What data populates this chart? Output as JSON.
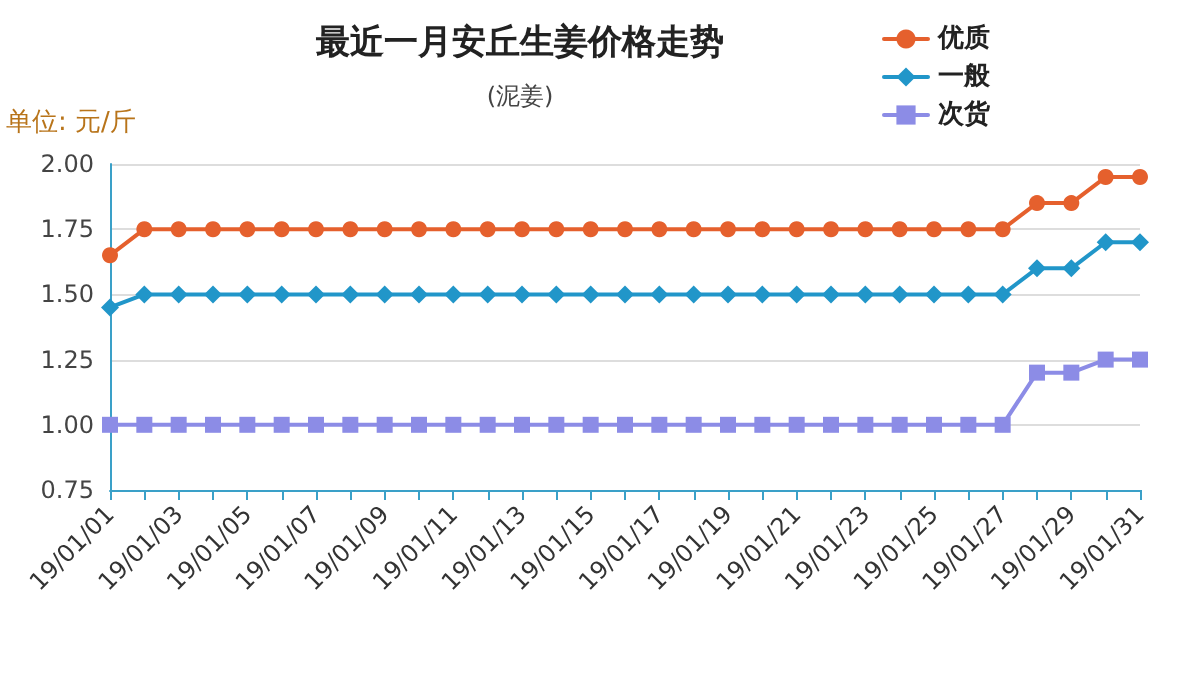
{
  "chart_data": {
    "type": "line",
    "title": "最近一月安丘生姜价格走势",
    "subtitle": "(泥姜)",
    "ylabel": "单位: 元/斤",
    "categories": [
      "19/01/01",
      null,
      "19/01/03",
      null,
      "19/01/05",
      null,
      "19/01/07",
      null,
      "19/01/09",
      null,
      "19/01/11",
      null,
      "19/01/13",
      null,
      "19/01/15",
      null,
      "19/01/17",
      null,
      "19/01/19",
      null,
      "19/01/21",
      null,
      "19/01/23",
      null,
      "19/01/25",
      null,
      "19/01/27",
      null,
      "19/01/29",
      null,
      "19/01/31"
    ],
    "series": [
      {
        "name": "优质",
        "color": "#e5602d",
        "marker": "circle",
        "values": [
          1.65,
          1.75,
          1.75,
          1.75,
          1.75,
          1.75,
          1.75,
          1.75,
          1.75,
          1.75,
          1.75,
          1.75,
          1.75,
          1.75,
          1.75,
          1.75,
          1.75,
          1.75,
          1.75,
          1.75,
          1.75,
          1.75,
          1.75,
          1.75,
          1.75,
          1.75,
          1.75,
          1.85,
          1.85,
          1.95,
          1.95
        ]
      },
      {
        "name": "一般",
        "color": "#2196c9",
        "marker": "diamond",
        "values": [
          1.45,
          1.5,
          1.5,
          1.5,
          1.5,
          1.5,
          1.5,
          1.5,
          1.5,
          1.5,
          1.5,
          1.5,
          1.5,
          1.5,
          1.5,
          1.5,
          1.5,
          1.5,
          1.5,
          1.5,
          1.5,
          1.5,
          1.5,
          1.5,
          1.5,
          1.5,
          1.5,
          1.6,
          1.6,
          1.7,
          1.7
        ]
      },
      {
        "name": "次货",
        "color": "#8c8ce6",
        "marker": "square",
        "values": [
          1,
          1,
          1,
          1,
          1,
          1,
          1,
          1,
          1,
          1,
          1,
          1,
          1,
          1,
          1,
          1,
          1,
          1,
          1,
          1,
          1,
          1,
          1,
          1,
          1,
          1,
          1,
          1.2,
          1.2,
          1.25,
          1.25
        ]
      }
    ],
    "ylim": [
      0.75,
      2
    ],
    "yticks": [
      {
        "value": 0.75,
        "label": "0.75"
      },
      {
        "value": 1,
        "label": "1.00"
      },
      {
        "value": 1.25,
        "label": "1.25"
      },
      {
        "value": 1.5,
        "label": "1.50"
      },
      {
        "value": 1.75,
        "label": "1.75"
      },
      {
        "value": 2,
        "label": "2.00"
      }
    ],
    "grid": "y",
    "legend": "top right",
    "line_style": "solid"
  }
}
